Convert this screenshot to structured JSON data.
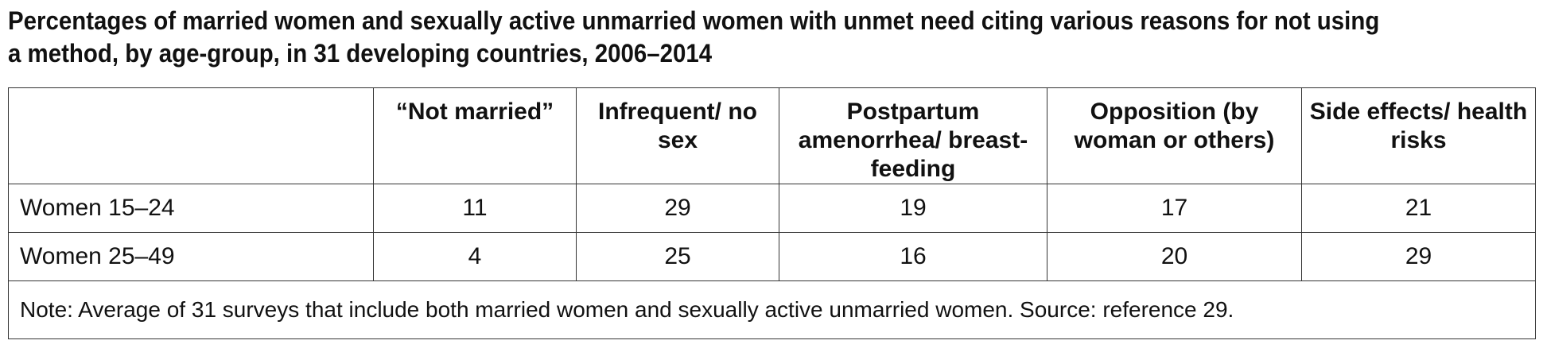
{
  "title": "Percentages of married women and sexually active unmarried women with unmet need citing various reasons for not using a method, by age-group, in 31 developing countries, 2006–2014",
  "table": {
    "headers": [
      "",
      "“Not married”",
      "Infrequent/ no sex",
      "Postpartum amenorrhea/ breast-feeding",
      "Opposition (by woman or others)",
      "Side effects/ health risks"
    ],
    "rows": [
      {
        "label": "Women 15–24",
        "values": [
          "11",
          "29",
          "19",
          "17",
          "21"
        ]
      },
      {
        "label": "Women 25–49",
        "values": [
          "4",
          "25",
          "16",
          "20",
          "29"
        ]
      }
    ]
  },
  "footnote": {
    "note_label": "Note:",
    "note_text": " Average of 31 surveys that include both married women and sexually active unmarried women. ",
    "source_label": "Source:",
    "source_text": " reference 29."
  }
}
